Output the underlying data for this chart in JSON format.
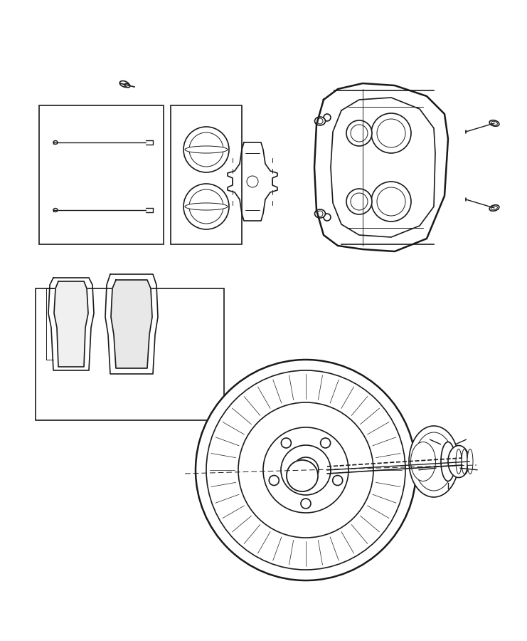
{
  "bg_color": "#ffffff",
  "line_color": "#1a1a1a",
  "line_width": 1.2,
  "thin_line": 0.7,
  "thick_line": 1.8,
  "fig_width": 7.41,
  "fig_height": 9.0,
  "dpi": 100
}
